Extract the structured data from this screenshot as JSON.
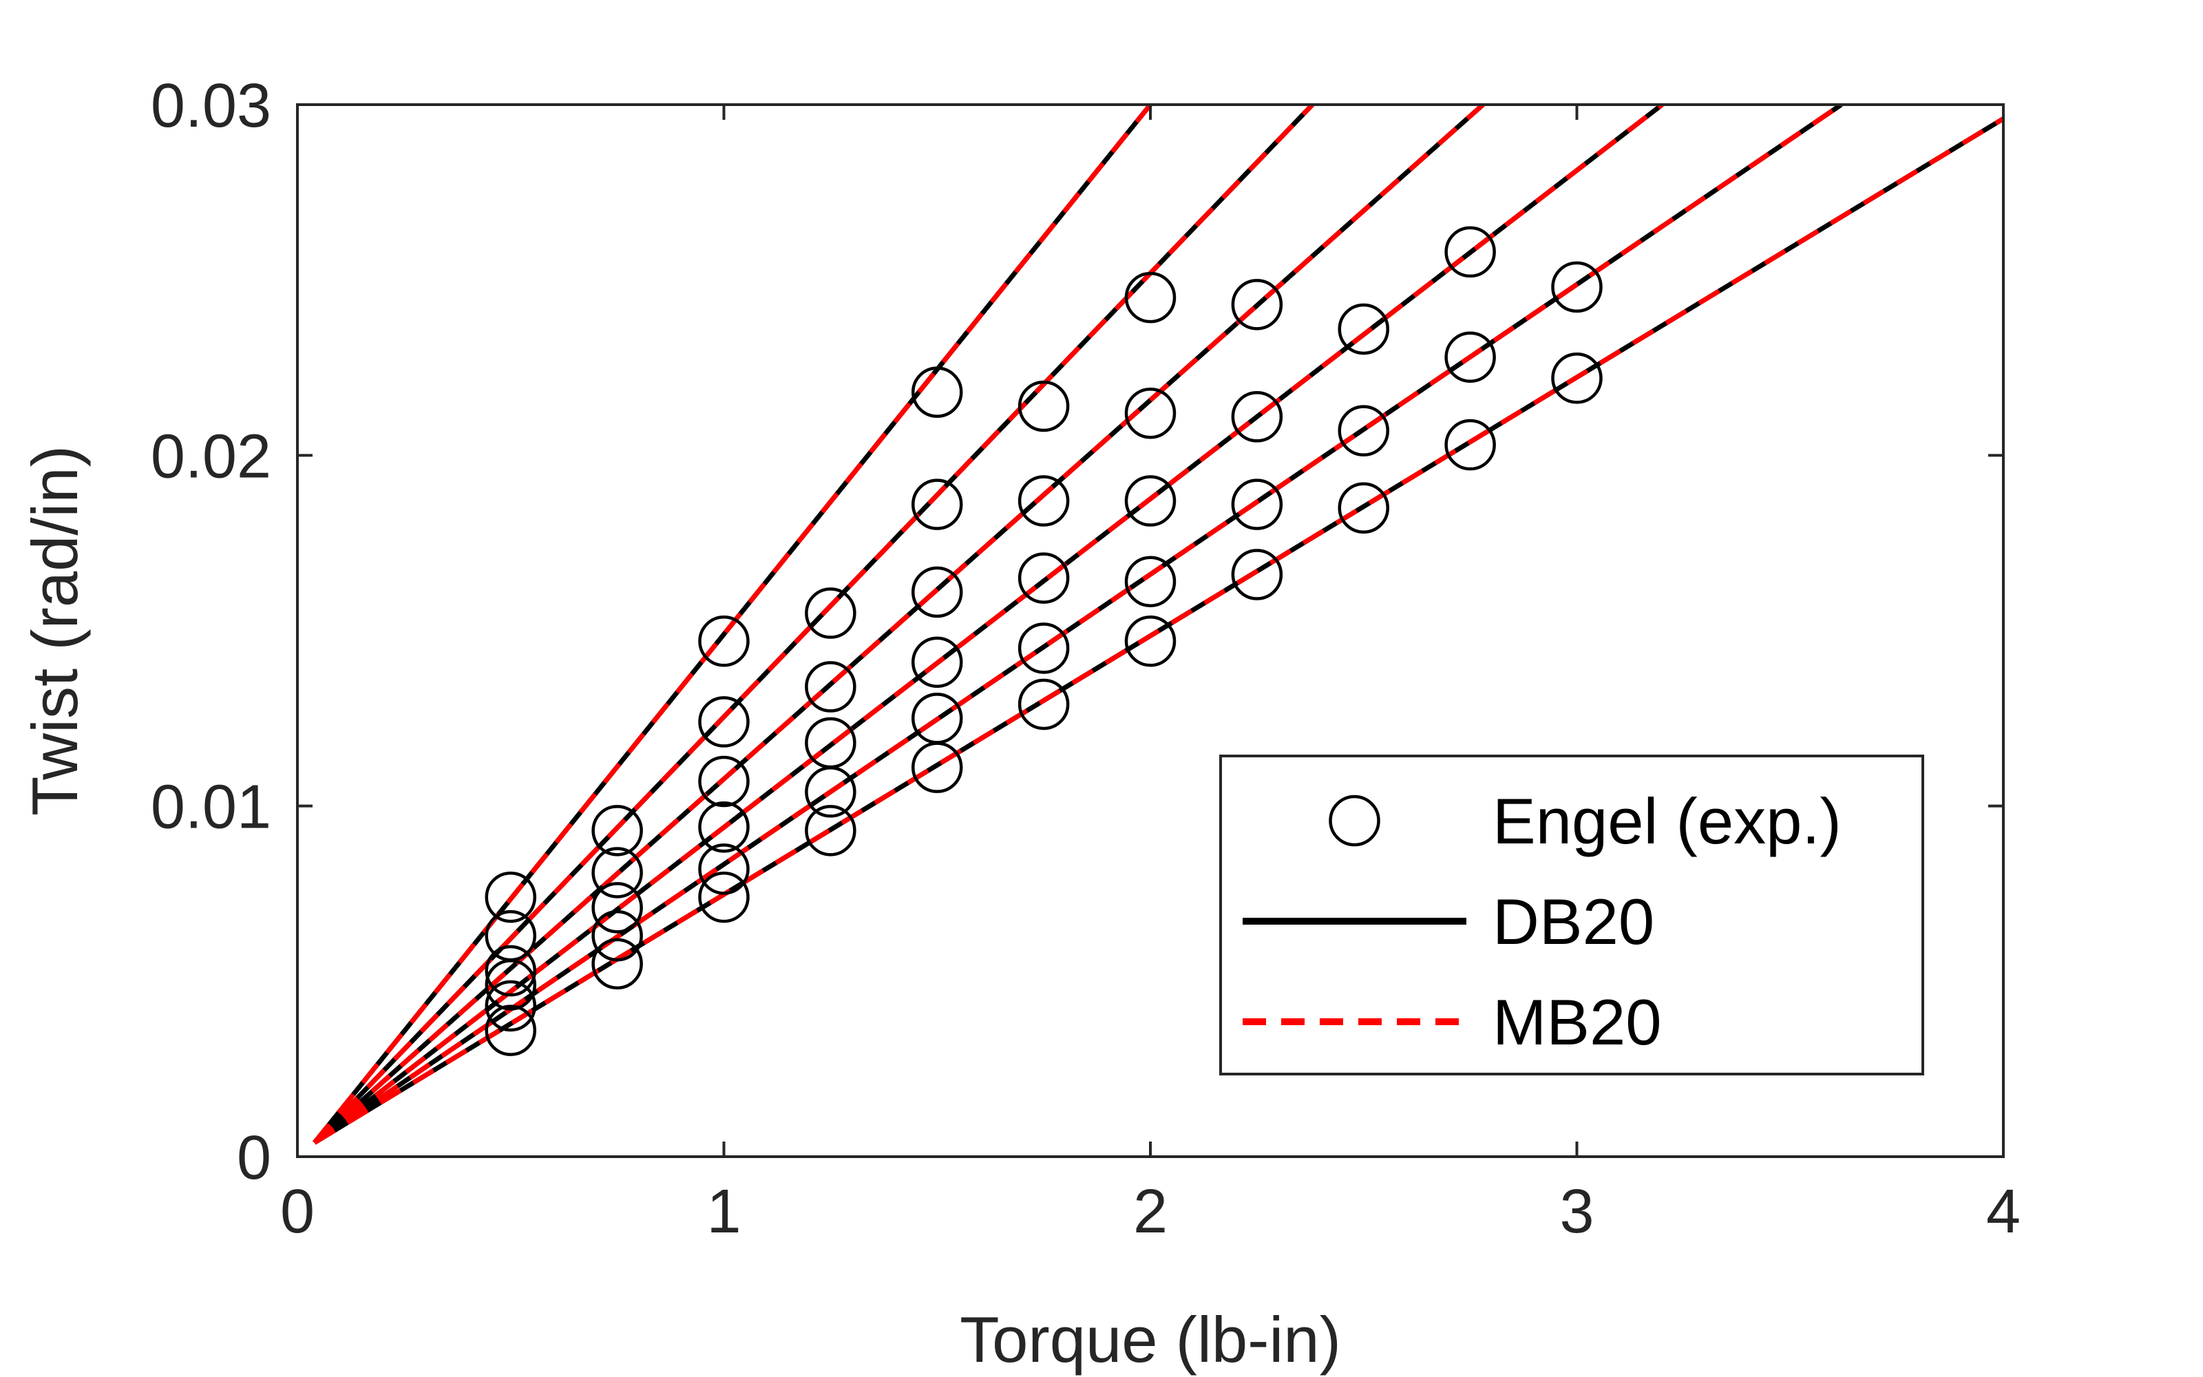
{
  "chart_data": {
    "type": "line",
    "xlabel": "Torque (lb-in)",
    "ylabel": "Twist (rad/in)",
    "xlim": [
      0,
      4
    ],
    "ylim": [
      0,
      0.03
    ],
    "x_ticks": [
      0,
      1,
      2,
      3,
      4
    ],
    "x_tick_labels": [
      "0",
      "1",
      "2",
      "3",
      "4"
    ],
    "y_ticks": [
      0,
      0.01,
      0.02,
      0.03
    ],
    "y_tick_labels": [
      "0",
      "0.01",
      "0.02",
      "0.03"
    ],
    "grid": false,
    "legend_position": "bottom-right",
    "legend": [
      {
        "label": "Engel (exp.)",
        "marker": "circle"
      },
      {
        "label": "DB20",
        "style": "solid"
      },
      {
        "label": "MB20",
        "style": "dashed"
      }
    ],
    "colors": {
      "engel": "#000000",
      "db20": "#000000",
      "mb20": "#ff0000"
    },
    "series": [
      {
        "name": "Engel (exp.)",
        "kind": "scatter",
        "points": [
          {
            "x": 0.5,
            "y": 0.0074
          },
          {
            "x": 0.5,
            "y": 0.0063
          },
          {
            "x": 0.5,
            "y": 0.0053
          },
          {
            "x": 0.5,
            "y": 0.0049
          },
          {
            "x": 0.5,
            "y": 0.0043
          },
          {
            "x": 0.5,
            "y": 0.0036
          },
          {
            "x": 0.75,
            "y": 0.0093
          },
          {
            "x": 0.75,
            "y": 0.0081
          },
          {
            "x": 0.75,
            "y": 0.0071
          },
          {
            "x": 0.75,
            "y": 0.0063
          },
          {
            "x": 0.75,
            "y": 0.0055
          },
          {
            "x": 1.0,
            "y": 0.0147
          },
          {
            "x": 1.0,
            "y": 0.0124
          },
          {
            "x": 1.0,
            "y": 0.0107
          },
          {
            "x": 1.0,
            "y": 0.0094
          },
          {
            "x": 1.0,
            "y": 0.0082
          },
          {
            "x": 1.0,
            "y": 0.0074
          },
          {
            "x": 1.25,
            "y": 0.0155
          },
          {
            "x": 1.25,
            "y": 0.0134
          },
          {
            "x": 1.25,
            "y": 0.0118
          },
          {
            "x": 1.25,
            "y": 0.0104
          },
          {
            "x": 1.25,
            "y": 0.0093
          },
          {
            "x": 1.5,
            "y": 0.0218
          },
          {
            "x": 1.5,
            "y": 0.0186
          },
          {
            "x": 1.5,
            "y": 0.0161
          },
          {
            "x": 1.5,
            "y": 0.0141
          },
          {
            "x": 1.5,
            "y": 0.0125
          },
          {
            "x": 1.5,
            "y": 0.0111
          },
          {
            "x": 1.75,
            "y": 0.0214
          },
          {
            "x": 1.75,
            "y": 0.0187
          },
          {
            "x": 1.75,
            "y": 0.0165
          },
          {
            "x": 1.75,
            "y": 0.0145
          },
          {
            "x": 1.75,
            "y": 0.0129
          },
          {
            "x": 2.0,
            "y": 0.0245
          },
          {
            "x": 2.0,
            "y": 0.0212
          },
          {
            "x": 2.0,
            "y": 0.0187
          },
          {
            "x": 2.0,
            "y": 0.0164
          },
          {
            "x": 2.0,
            "y": 0.0147
          },
          {
            "x": 2.25,
            "y": 0.0243
          },
          {
            "x": 2.25,
            "y": 0.0211
          },
          {
            "x": 2.25,
            "y": 0.0186
          },
          {
            "x": 2.25,
            "y": 0.0166
          },
          {
            "x": 2.5,
            "y": 0.0236
          },
          {
            "x": 2.5,
            "y": 0.0207
          },
          {
            "x": 2.5,
            "y": 0.0185
          },
          {
            "x": 2.75,
            "y": 0.0258
          },
          {
            "x": 2.75,
            "y": 0.0228
          },
          {
            "x": 2.75,
            "y": 0.0203
          },
          {
            "x": 3.0,
            "y": 0.0248
          },
          {
            "x": 3.0,
            "y": 0.0222
          }
        ]
      },
      {
        "name": "DB20",
        "kind": "line",
        "lines": [
          {
            "x": [
              0.04,
              2.0
            ],
            "y": [
              0.0004,
              0.03
            ]
          },
          {
            "x": [
              0.04,
              2.38
            ],
            "y": [
              0.0004,
              0.03
            ]
          },
          {
            "x": [
              0.04,
              2.78
            ],
            "y": [
              0.0004,
              0.03
            ]
          },
          {
            "x": [
              0.04,
              3.2
            ],
            "y": [
              0.0004,
              0.03
            ]
          },
          {
            "x": [
              0.04,
              3.62
            ],
            "y": [
              0.0004,
              0.03
            ]
          },
          {
            "x": [
              0.04,
              4.0
            ],
            "y": [
              0.0004,
              0.0296
            ]
          }
        ]
      },
      {
        "name": "MB20",
        "kind": "line",
        "lines": [
          {
            "x": [
              0.04,
              2.0
            ],
            "y": [
              0.0004,
              0.03
            ]
          },
          {
            "x": [
              0.04,
              2.38
            ],
            "y": [
              0.0004,
              0.03
            ]
          },
          {
            "x": [
              0.04,
              2.78
            ],
            "y": [
              0.0004,
              0.03
            ]
          },
          {
            "x": [
              0.04,
              3.2
            ],
            "y": [
              0.0004,
              0.03
            ]
          },
          {
            "x": [
              0.04,
              3.62
            ],
            "y": [
              0.0004,
              0.03
            ]
          },
          {
            "x": [
              0.04,
              4.0
            ],
            "y": [
              0.0004,
              0.0296
            ]
          }
        ]
      }
    ]
  }
}
